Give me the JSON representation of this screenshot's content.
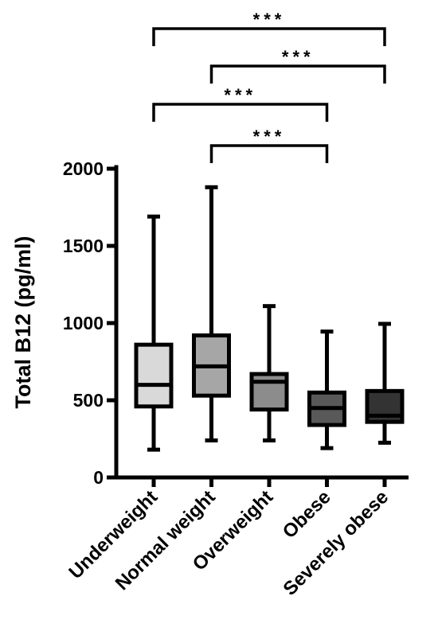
{
  "chart_data": {
    "type": "box",
    "title": "",
    "xlabel": "",
    "ylabel": "Total B12 (pg/ml)",
    "ylim": [
      0,
      2000
    ],
    "yticks": [
      0,
      500,
      1000,
      1500,
      2000
    ],
    "grid": false,
    "legend": "none",
    "categories": [
      "Underweight",
      "Normal weight",
      "Overweight",
      "Obese",
      "Severely obese"
    ],
    "boxes": [
      {
        "category": "Underweight",
        "min": 180,
        "q1": 460,
        "median": 600,
        "q3": 860,
        "max": 1690,
        "fill": "#d9d9d9"
      },
      {
        "category": "Normal weight",
        "min": 240,
        "q1": 530,
        "median": 720,
        "q3": 920,
        "max": 1880,
        "fill": "#a6a6a6"
      },
      {
        "category": "Overweight",
        "min": 240,
        "q1": 440,
        "median": 620,
        "q3": 670,
        "max": 1110,
        "fill": "#8c8c8c"
      },
      {
        "category": "Obese",
        "min": 190,
        "q1": 340,
        "median": 450,
        "q3": 550,
        "max": 945,
        "fill": "#595959"
      },
      {
        "category": "Severely obese",
        "min": 225,
        "q1": 360,
        "median": 400,
        "q3": 560,
        "max": 995,
        "fill": "#333333"
      }
    ],
    "significance": [
      {
        "from": "Underweight",
        "to": "Severely obese",
        "label": "***"
      },
      {
        "from": "Normal weight",
        "to": "Severely obese",
        "label": "***"
      },
      {
        "from": "Underweight",
        "to": "Obese",
        "label": "***"
      },
      {
        "from": "Normal weight",
        "to": "Obese",
        "label": "***"
      }
    ]
  }
}
